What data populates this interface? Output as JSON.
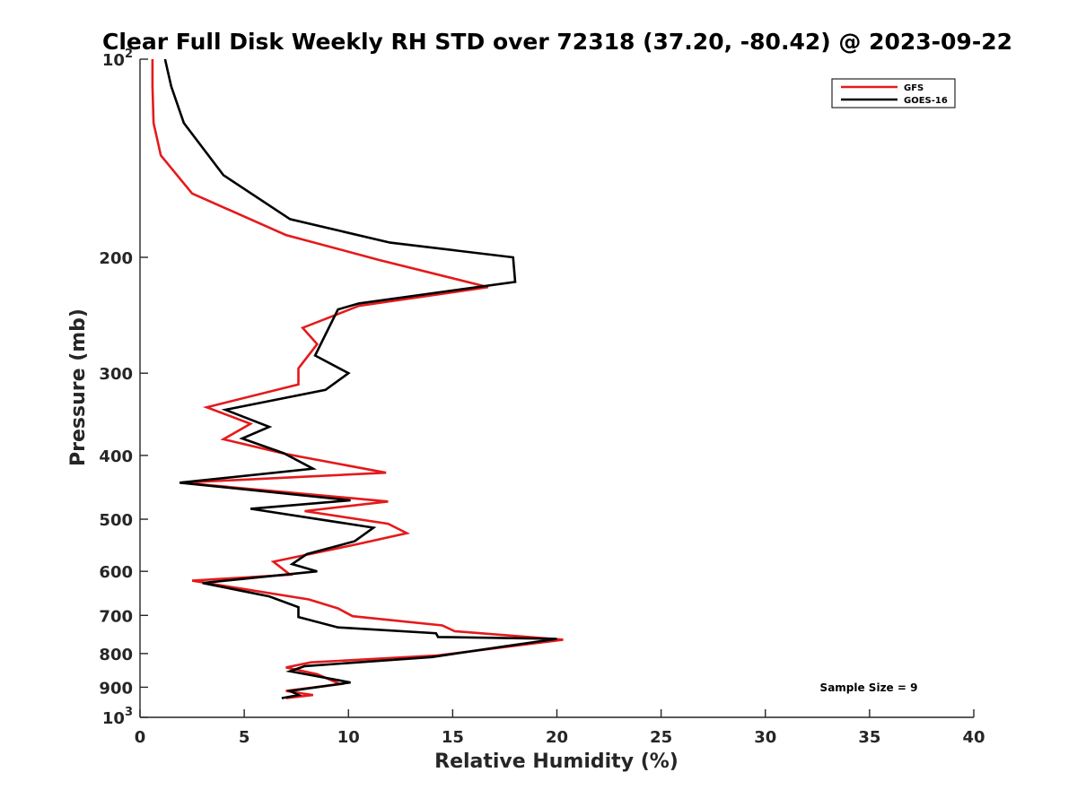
{
  "chart_data": {
    "type": "line",
    "title": "Clear Full Disk Weekly RH STD over 72318 (37.20, -80.42) @ 2023-09-22",
    "xlabel": "Relative Humidity (%)",
    "ylabel": "Pressure (mb)",
    "xlim": [
      0,
      40
    ],
    "ylim": [
      100,
      1000
    ],
    "y_scale": "log",
    "y_reversed": true,
    "grid": false,
    "legend_position": "top-right",
    "x_ticks": [
      0,
      5,
      10,
      15,
      20,
      25,
      30,
      35,
      40
    ],
    "x_tick_labels": [
      "0",
      "5",
      "10",
      "15",
      "20",
      "25",
      "30",
      "35",
      "40"
    ],
    "y_ticks": [
      100,
      200,
      300,
      400,
      500,
      600,
      700,
      800,
      900,
      1000
    ],
    "y_tick_labels": [
      {
        "base": "10",
        "exp": "2"
      },
      {
        "base": "200",
        "exp": ""
      },
      {
        "base": "300",
        "exp": ""
      },
      {
        "base": "400",
        "exp": ""
      },
      {
        "base": "500",
        "exp": ""
      },
      {
        "base": "600",
        "exp": ""
      },
      {
        "base": "700",
        "exp": ""
      },
      {
        "base": "800",
        "exp": ""
      },
      {
        "base": "900",
        "exp": ""
      },
      {
        "base": "10",
        "exp": "3"
      }
    ],
    "series": [
      {
        "name": "GFS",
        "color": "#e41a1c",
        "points": [
          [
            0.6,
            100
          ],
          [
            0.6,
            110
          ],
          [
            0.65,
            125
          ],
          [
            1.0,
            140
          ],
          [
            2.5,
            160
          ],
          [
            7.0,
            185
          ],
          [
            11.5,
            202
          ],
          [
            16.7,
            222
          ],
          [
            10.5,
            237
          ],
          [
            7.8,
            256
          ],
          [
            8.5,
            271
          ],
          [
            7.6,
            295
          ],
          [
            7.6,
            312
          ],
          [
            3.2,
            338
          ],
          [
            5.3,
            358
          ],
          [
            4.0,
            378
          ],
          [
            7.0,
            398
          ],
          [
            11.8,
            425
          ],
          [
            2.0,
            440
          ],
          [
            11.9,
            470
          ],
          [
            7.9,
            486
          ],
          [
            11.9,
            508
          ],
          [
            12.8,
            525
          ],
          [
            10.5,
            545
          ],
          [
            6.4,
            580
          ],
          [
            7.2,
            607
          ],
          [
            2.5,
            620
          ],
          [
            8.1,
            662
          ],
          [
            9.5,
            683
          ],
          [
            10.2,
            702
          ],
          [
            14.5,
            725
          ],
          [
            15.1,
            740
          ],
          [
            20.3,
            762
          ],
          [
            14.3,
            805
          ],
          [
            8.2,
            825
          ],
          [
            7.0,
            840
          ],
          [
            8.5,
            860
          ],
          [
            9.6,
            890
          ],
          [
            7.0,
            912
          ],
          [
            8.3,
            925
          ],
          [
            7.0,
            935
          ]
        ]
      },
      {
        "name": "GOES-16",
        "color": "#000000",
        "points": [
          [
            1.2,
            100
          ],
          [
            1.5,
            110
          ],
          [
            2.1,
            125
          ],
          [
            4.0,
            150
          ],
          [
            7.2,
            175
          ],
          [
            12.0,
            190
          ],
          [
            17.9,
            200
          ],
          [
            18.0,
            218
          ],
          [
            10.5,
            235
          ],
          [
            9.5,
            240
          ],
          [
            8.9,
            262
          ],
          [
            8.4,
            282
          ],
          [
            10.0,
            300
          ],
          [
            8.9,
            318
          ],
          [
            4.1,
            341
          ],
          [
            6.2,
            362
          ],
          [
            4.9,
            377
          ],
          [
            6.9,
            397
          ],
          [
            8.3,
            419
          ],
          [
            1.9,
            440
          ],
          [
            10.1,
            468
          ],
          [
            5.3,
            482
          ],
          [
            11.2,
            515
          ],
          [
            10.3,
            540
          ],
          [
            8.0,
            565
          ],
          [
            7.3,
            585
          ],
          [
            8.5,
            600
          ],
          [
            3.0,
            625
          ],
          [
            6.2,
            655
          ],
          [
            7.6,
            680
          ],
          [
            7.6,
            704
          ],
          [
            9.5,
            730
          ],
          [
            14.2,
            745
          ],
          [
            14.3,
            755
          ],
          [
            20.0,
            760
          ],
          [
            17.5,
            780
          ],
          [
            14.0,
            810
          ],
          [
            7.9,
            836
          ],
          [
            7.2,
            851
          ],
          [
            10.1,
            885
          ],
          [
            7.2,
            912
          ],
          [
            7.6,
            925
          ],
          [
            6.8,
            935
          ]
        ]
      }
    ],
    "annotations": [
      {
        "text": "Sample Size = 9",
        "x": 35,
        "y": 900
      }
    ]
  }
}
